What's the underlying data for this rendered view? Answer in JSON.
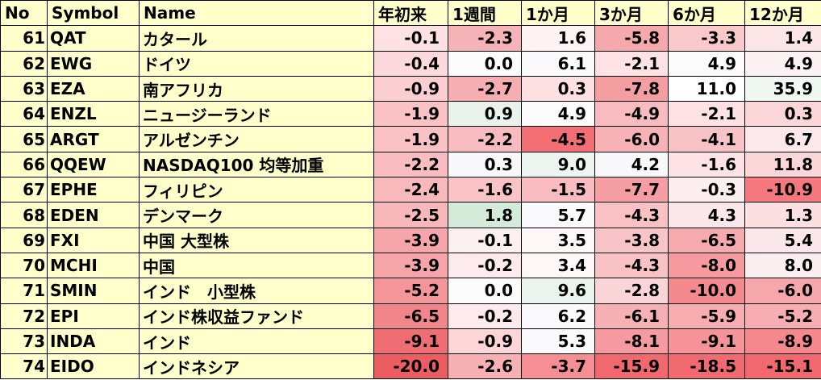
{
  "headers": [
    "No",
    "Symbol",
    "Name",
    "年初来",
    "1週間",
    "1か月",
    "3か月",
    "6か月",
    "12か月"
  ],
  "rows": [
    {
      "no": "61",
      "symbol": "QAT",
      "name": "カタール",
      "values": [
        "-0.1",
        "-2.3",
        "1.6",
        "-5.8",
        "-3.3",
        "1.4"
      ],
      "colors": [
        "#fde1e3",
        "#f7b4b8",
        "#fdf3f4",
        "#f5a9ad",
        "#f9c9cc",
        "#fde6e8"
      ]
    },
    {
      "no": "62",
      "symbol": "EWG",
      "name": "ドイツ",
      "values": [
        "-0.4",
        "0.0",
        "6.1",
        "-2.1",
        "4.9",
        "4.9"
      ],
      "colors": [
        "#fcd9dc",
        "#fdfcfc",
        "#fafafc",
        "#fde3e5",
        "#fbfbfc",
        "#fcf2f3"
      ]
    },
    {
      "no": "63",
      "symbol": "EZA",
      "name": "南アフリカ",
      "values": [
        "-0.9",
        "-2.7",
        "0.3",
        "-7.8",
        "11.0",
        "35.9"
      ],
      "colors": [
        "#fbcfd2",
        "#f6aeb2",
        "#fde0e2",
        "#f59ea2",
        "#ffffff",
        "#f1f7f3"
      ]
    },
    {
      "no": "64",
      "symbol": "ENZL",
      "name": "ニュージーランド",
      "values": [
        "-1.9",
        "0.9",
        "4.9",
        "-4.9",
        "-2.1",
        "0.3"
      ],
      "colors": [
        "#fac2c5",
        "#e9f3ec",
        "#fbfbfc",
        "#f8bcc0",
        "#fde1e3",
        "#fbd6d9"
      ]
    },
    {
      "no": "65",
      "symbol": "ARGT",
      "name": "アルゼンチン",
      "values": [
        "-1.9",
        "-2.2",
        "-4.5",
        "-6.0",
        "-4.1",
        "6.7"
      ],
      "colors": [
        "#fac2c5",
        "#f8bcc0",
        "#f36f73",
        "#f6b2b6",
        "#f8c3c6",
        "#fce8ea"
      ]
    },
    {
      "no": "66",
      "symbol": "QQEW",
      "name": "NASDAQ100 均等加重",
      "values": [
        "-2.2",
        "0.3",
        "9.0",
        "4.2",
        "-1.6",
        "11.8"
      ],
      "colors": [
        "#f9bdc1",
        "#f8f8fb",
        "#ecf5ef",
        "#f8f8fb",
        "#fde3e5",
        "#fbd6d9"
      ]
    },
    {
      "no": "67",
      "symbol": "EPHE",
      "name": "フィリピン",
      "values": [
        "-2.4",
        "-1.6",
        "-1.5",
        "-7.7",
        "-0.3",
        "-10.9"
      ],
      "colors": [
        "#f8b9bd",
        "#fac4c7",
        "#f9bdc1",
        "#f59ea3",
        "#fdeef0",
        "#f4787d"
      ]
    },
    {
      "no": "68",
      "symbol": "EDEN",
      "name": "デンマーク",
      "values": [
        "-2.5",
        "1.8",
        "5.7",
        "-4.3",
        "4.3",
        "1.3"
      ],
      "colors": [
        "#f8b7bb",
        "#d4ebd9",
        "#fafafc",
        "#f8c1c4",
        "#fbe7e9",
        "#fcdfe1"
      ]
    },
    {
      "no": "69",
      "symbol": "FXI",
      "name": "中国 大型株",
      "values": [
        "-3.9",
        "-0.1",
        "3.5",
        "-3.8",
        "-6.5",
        "5.4"
      ],
      "colors": [
        "#f5a5a9",
        "#fdf0f1",
        "#fdf7f8",
        "#f9c4c7",
        "#f7aaae",
        "#fbe7e9"
      ]
    },
    {
      "no": "70",
      "symbol": "MCHI",
      "name": "中国",
      "values": [
        "-3.9",
        "-0.2",
        "3.4",
        "-4.3",
        "-8.0",
        "8.0"
      ],
      "colors": [
        "#f5a5a9",
        "#fceaec",
        "#fdf7f8",
        "#f8c1c4",
        "#f69a9f",
        "#fbeef0"
      ]
    },
    {
      "no": "71",
      "symbol": "SMIN",
      "name": "インド　小型株",
      "values": [
        "-5.2",
        "0.0",
        "9.6",
        "-2.8",
        "-10.0",
        "-6.0"
      ],
      "colors": [
        "#f39599",
        "#fdfcfc",
        "#eaf4ed",
        "#fad5d8",
        "#f4898e",
        "#f6a7ab"
      ]
    },
    {
      "no": "72",
      "symbol": "EPI",
      "name": "インド株収益ファンド",
      "values": [
        "-6.5",
        "-0.2",
        "6.2",
        "-6.1",
        "-5.9",
        "-5.2"
      ],
      "colors": [
        "#f18589",
        "#fceaec",
        "#fafafc",
        "#f6b1b5",
        "#f7acb0",
        "#f7adb1"
      ]
    },
    {
      "no": "73",
      "symbol": "INDA",
      "name": "インド",
      "values": [
        "-9.1",
        "-0.9",
        "5.3",
        "-8.1",
        "-9.1",
        "-8.9"
      ],
      "colors": [
        "#ef6e73",
        "#fbd5d8",
        "#fafafc",
        "#f59aa0",
        "#f59398",
        "#f5888d"
      ]
    },
    {
      "no": "74",
      "symbol": "EIDO",
      "name": "インドネシア",
      "values": [
        "-20.0",
        "-2.6",
        "-3.7",
        "-15.9",
        "-18.5",
        "-15.1"
      ],
      "colors": [
        "#ec5d62",
        "#f7b0b4",
        "#f58f93",
        "#f1696e",
        "#f06a6f",
        "#f1696e"
      ]
    }
  ]
}
